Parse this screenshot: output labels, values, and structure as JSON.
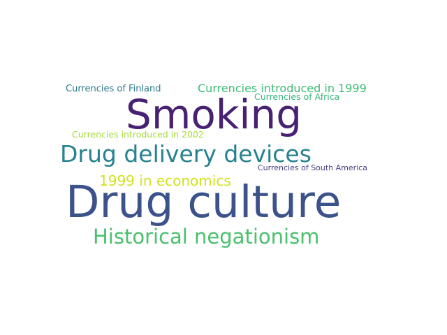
{
  "words": [
    {
      "id": "w-fin",
      "text": "Currencies of Finland",
      "color": "#2a788e"
    },
    {
      "id": "w-1999c",
      "text": "Currencies introduced in 1999",
      "color": "#3cbb75"
    },
    {
      "id": "w-afr",
      "text": "Currencies of Africa",
      "color": "#35b779"
    },
    {
      "id": "w-smk",
      "text": "Smoking",
      "color": "#482173"
    },
    {
      "id": "w-2002",
      "text": "Currencies introduced in 2002",
      "color": "#a5db36"
    },
    {
      "id": "w-ddd",
      "text": "Drug delivery devices",
      "color": "#26828e"
    },
    {
      "id": "w-sam",
      "text": "Currencies of South America",
      "color": "#433e85"
    },
    {
      "id": "w-econ",
      "text": "1999 in economics",
      "color": "#d2e21b"
    },
    {
      "id": "w-dc",
      "text": "Drug culture",
      "color": "#3b528b"
    },
    {
      "id": "w-hist",
      "text": "Historical negationism",
      "color": "#4ac16d"
    }
  ]
}
